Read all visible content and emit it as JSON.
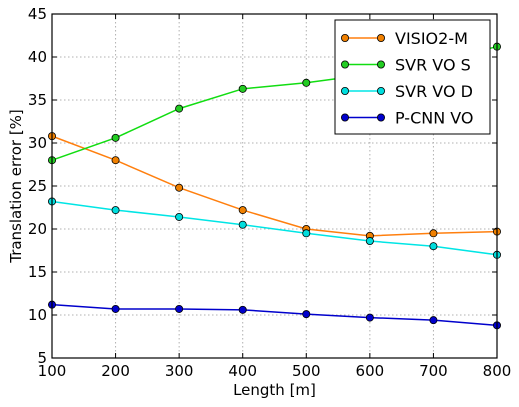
{
  "chart_data": {
    "type": "line",
    "title": "",
    "xlabel": "Length [m]",
    "ylabel": "Translation error [%]",
    "xlim": [
      100,
      800
    ],
    "ylim": [
      5,
      45
    ],
    "xticks": [
      100,
      200,
      300,
      400,
      500,
      600,
      700,
      800
    ],
    "yticks": [
      5,
      10,
      15,
      20,
      25,
      30,
      35,
      40,
      45
    ],
    "grid": true,
    "legend_position": "top-right",
    "x": [
      100,
      200,
      300,
      400,
      500,
      600,
      700,
      800
    ],
    "series": [
      {
        "name": "VISIO2-M",
        "color": "#ff7f0e",
        "marker_fill": "#f08000",
        "values": [
          30.8,
          28.0,
          24.8,
          22.2,
          20.0,
          19.2,
          19.5,
          19.7
        ]
      },
      {
        "name": "SVR VO S",
        "color": "#11dd11",
        "marker_fill": "#22cc22",
        "values": [
          28.0,
          30.6,
          34.0,
          36.3,
          37.0,
          38.0,
          39.5,
          41.2
        ]
      },
      {
        "name": "SVR VO D",
        "color": "#00e5e5",
        "marker_fill": "#00dddd",
        "values": [
          23.2,
          22.2,
          21.4,
          20.5,
          19.5,
          18.6,
          18.0,
          17.0
        ]
      },
      {
        "name": "P-CNN VO",
        "color": "#0000cc",
        "marker_fill": "#0000cc",
        "values": [
          11.2,
          10.7,
          10.7,
          10.6,
          10.1,
          9.7,
          9.4,
          8.8
        ]
      }
    ]
  }
}
